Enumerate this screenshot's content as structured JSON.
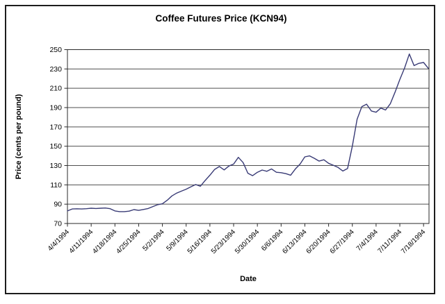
{
  "page": {
    "background": "#ffffff",
    "frame_color": "#1c1c1c"
  },
  "chart_data": {
    "type": "line",
    "title": "Coffee Futures Price (KCN94)",
    "xlabel": "Date",
    "ylabel": "Price (cents per pound)",
    "ylim": [
      70,
      250
    ],
    "yticks": [
      70,
      90,
      110,
      130,
      150,
      170,
      190,
      210,
      230,
      250
    ],
    "x_tick_labels": [
      "4/4/1994",
      "4/11/1994",
      "4/18/1994",
      "4/25/1994",
      "5/2/1994",
      "5/9/1994",
      "5/16/1994",
      "5/23/1994",
      "5/30/1994",
      "6/6/1994",
      "6/13/1994",
      "6/20/1994",
      "6/27/1994",
      "7/4/1994",
      "7/11/1994",
      "7/18/1994"
    ],
    "x_tick_interval_points": 5,
    "grid": "horizontal",
    "legend": "none",
    "line_color": "#383a75",
    "gridline_color": "#4f4f4f",
    "axis_color": "#2a2a2a",
    "series": [
      {
        "name": "KCN94",
        "dates": [
          "4/4",
          "4/5",
          "4/6",
          "4/7",
          "4/8",
          "4/11",
          "4/12",
          "4/13",
          "4/14",
          "4/15",
          "4/18",
          "4/19",
          "4/20",
          "4/21",
          "4/22",
          "4/25",
          "4/26",
          "4/27",
          "4/28",
          "4/29",
          "5/2",
          "5/3",
          "5/4",
          "5/5",
          "5/6",
          "5/9",
          "5/10",
          "5/11",
          "5/12",
          "5/13",
          "5/16",
          "5/17",
          "5/18",
          "5/19",
          "5/20",
          "5/23",
          "5/24",
          "5/25",
          "5/26",
          "5/27",
          "5/30",
          "5/31",
          "6/1",
          "6/2",
          "6/3",
          "6/6",
          "6/7",
          "6/8",
          "6/9",
          "6/10",
          "6/13",
          "6/14",
          "6/15",
          "6/16",
          "6/17",
          "6/20",
          "6/21",
          "6/22",
          "6/23",
          "6/24",
          "6/27",
          "6/28",
          "6/29",
          "6/30",
          "7/1",
          "7/4",
          "7/5",
          "7/6",
          "7/7",
          "7/8",
          "7/11",
          "7/12",
          "7/13",
          "7/14",
          "7/15",
          "7/18",
          "7/19"
        ],
        "values": [
          83.0,
          85.0,
          85.2,
          85.0,
          85.3,
          85.8,
          85.5,
          85.8,
          86.0,
          85.3,
          83.0,
          82.3,
          82.3,
          82.8,
          84.4,
          83.6,
          84.5,
          85.5,
          87.5,
          89.5,
          90.4,
          94.0,
          98.5,
          101.5,
          103.5,
          105.5,
          108.0,
          110.3,
          108.6,
          114.5,
          120.0,
          126.0,
          129.0,
          125.5,
          129.5,
          131.5,
          138.5,
          133.0,
          122.0,
          119.5,
          123.0,
          125.3,
          124.0,
          126.5,
          123.0,
          122.6,
          121.6,
          120.0,
          126.5,
          131.5,
          139.0,
          140.0,
          137.5,
          134.6,
          136.0,
          132.3,
          130.3,
          128.0,
          124.3,
          127.0,
          150.0,
          178.0,
          191.0,
          193.5,
          186.5,
          185.2,
          189.5,
          187.5,
          194.0,
          206.0,
          219.0,
          231.0,
          245.5,
          233.5,
          235.8,
          236.7,
          230.7
        ]
      }
    ]
  }
}
